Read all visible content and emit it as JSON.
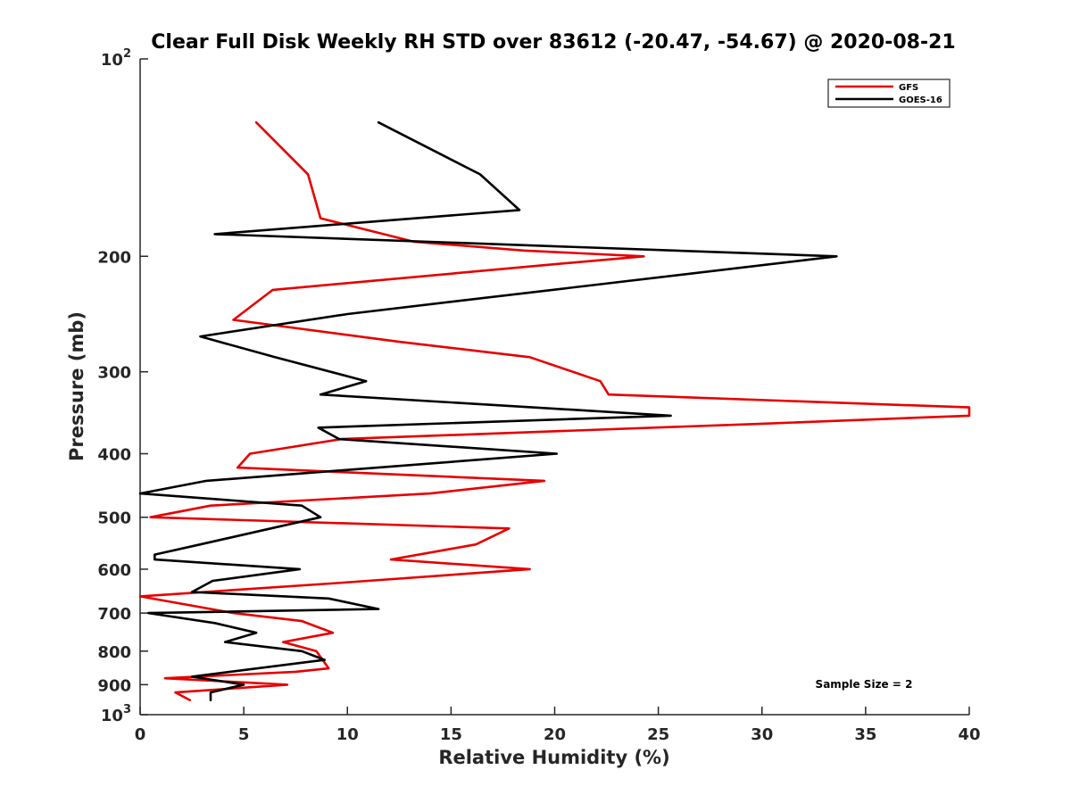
{
  "chart_data": {
    "type": "line",
    "title": "Clear Full Disk Weekly RH STD over 83612 (-20.47, -54.67) @ 2020-08-21",
    "xlabel": "Relative Humidity (%)",
    "ylabel": "Pressure (mb)",
    "xlim": [
      0,
      40
    ],
    "ylim": [
      100,
      1000
    ],
    "y_scale": "log",
    "y_reversed": true,
    "grid": false,
    "legend_position": "top-right",
    "x_ticks": [
      0,
      5,
      10,
      15,
      20,
      25,
      30,
      35,
      40
    ],
    "x_tick_labels": [
      "0",
      "5",
      "10",
      "15",
      "20",
      "25",
      "30",
      "35",
      "40"
    ],
    "y_ticks": [
      {
        "value": 100,
        "label": "10",
        "exp": "2"
      },
      {
        "value": 200,
        "label": "200",
        "exp": ""
      },
      {
        "value": 300,
        "label": "300",
        "exp": ""
      },
      {
        "value": 400,
        "label": "400",
        "exp": ""
      },
      {
        "value": 500,
        "label": "500",
        "exp": ""
      },
      {
        "value": 600,
        "label": "600",
        "exp": ""
      },
      {
        "value": 700,
        "label": "700",
        "exp": ""
      },
      {
        "value": 800,
        "label": "800",
        "exp": ""
      },
      {
        "value": 900,
        "label": "900",
        "exp": ""
      },
      {
        "value": 1000,
        "label": "10",
        "exp": "3"
      }
    ],
    "series": [
      {
        "name": "GFS",
        "color": "#e60000",
        "points": [
          {
            "rh": 5.6,
            "p": 125
          },
          {
            "rh": 8.1,
            "p": 150
          },
          {
            "rh": 8.7,
            "p": 175
          },
          {
            "rh": 13.2,
            "p": 190
          },
          {
            "rh": 18.5,
            "p": 196
          },
          {
            "rh": 24.3,
            "p": 200
          },
          {
            "rh": 20.5,
            "p": 205
          },
          {
            "rh": 6.4,
            "p": 225
          },
          {
            "rh": 4.5,
            "p": 250
          },
          {
            "rh": 12.5,
            "p": 270
          },
          {
            "rh": 18.8,
            "p": 285
          },
          {
            "rh": 22.2,
            "p": 310
          },
          {
            "rh": 22.6,
            "p": 325
          },
          {
            "rh": 40.0,
            "p": 340
          },
          {
            "rh": 40.0,
            "p": 350
          },
          {
            "rh": 30.0,
            "p": 360
          },
          {
            "rh": 9.7,
            "p": 380
          },
          {
            "rh": 5.3,
            "p": 400
          },
          {
            "rh": 4.7,
            "p": 420
          },
          {
            "rh": 19.5,
            "p": 440
          },
          {
            "rh": 14.0,
            "p": 460
          },
          {
            "rh": 3.4,
            "p": 480
          },
          {
            "rh": 0.5,
            "p": 500
          },
          {
            "rh": 17.8,
            "p": 520
          },
          {
            "rh": 16.2,
            "p": 550
          },
          {
            "rh": 12.1,
            "p": 580
          },
          {
            "rh": 18.8,
            "p": 600
          },
          {
            "rh": 9.5,
            "p": 630
          },
          {
            "rh": 0.0,
            "p": 660
          },
          {
            "rh": 4.5,
            "p": 700
          },
          {
            "rh": 7.8,
            "p": 720
          },
          {
            "rh": 9.3,
            "p": 750
          },
          {
            "rh": 6.9,
            "p": 775
          },
          {
            "rh": 8.5,
            "p": 800
          },
          {
            "rh": 9.1,
            "p": 850
          },
          {
            "rh": 7.5,
            "p": 860
          },
          {
            "rh": 1.2,
            "p": 880
          },
          {
            "rh": 7.1,
            "p": 900
          },
          {
            "rh": 1.7,
            "p": 925
          },
          {
            "rh": 2.4,
            "p": 950
          }
        ]
      },
      {
        "name": "GOES-16",
        "color": "#000000",
        "points": [
          {
            "rh": 11.5,
            "p": 125
          },
          {
            "rh": 16.4,
            "p": 150
          },
          {
            "rh": 18.3,
            "p": 170
          },
          {
            "rh": 3.6,
            "p": 185
          },
          {
            "rh": 33.6,
            "p": 200
          },
          {
            "rh": 10.0,
            "p": 245
          },
          {
            "rh": 2.9,
            "p": 265
          },
          {
            "rh": 6.5,
            "p": 285
          },
          {
            "rh": 10.9,
            "p": 310
          },
          {
            "rh": 8.7,
            "p": 325
          },
          {
            "rh": 25.6,
            "p": 350
          },
          {
            "rh": 8.6,
            "p": 365
          },
          {
            "rh": 9.6,
            "p": 380
          },
          {
            "rh": 20.1,
            "p": 400
          },
          {
            "rh": 3.2,
            "p": 440
          },
          {
            "rh": 0.0,
            "p": 460
          },
          {
            "rh": 7.8,
            "p": 480
          },
          {
            "rh": 8.7,
            "p": 500
          },
          {
            "rh": 6.3,
            "p": 520
          },
          {
            "rh": 2.9,
            "p": 550
          },
          {
            "rh": 0.7,
            "p": 570
          },
          {
            "rh": 0.7,
            "p": 580
          },
          {
            "rh": 7.7,
            "p": 600
          },
          {
            "rh": 3.5,
            "p": 625
          },
          {
            "rh": 2.5,
            "p": 650
          },
          {
            "rh": 9.1,
            "p": 665
          },
          {
            "rh": 11.5,
            "p": 690
          },
          {
            "rh": 0.4,
            "p": 700
          },
          {
            "rh": 3.6,
            "p": 725
          },
          {
            "rh": 5.6,
            "p": 750
          },
          {
            "rh": 4.1,
            "p": 775
          },
          {
            "rh": 7.8,
            "p": 800
          },
          {
            "rh": 8.9,
            "p": 825
          },
          {
            "rh": 2.5,
            "p": 875
          },
          {
            "rh": 5.0,
            "p": 900
          },
          {
            "rh": 3.4,
            "p": 925
          },
          {
            "rh": 3.4,
            "p": 950
          }
        ]
      }
    ],
    "annotation": "Sample Size = 2"
  }
}
